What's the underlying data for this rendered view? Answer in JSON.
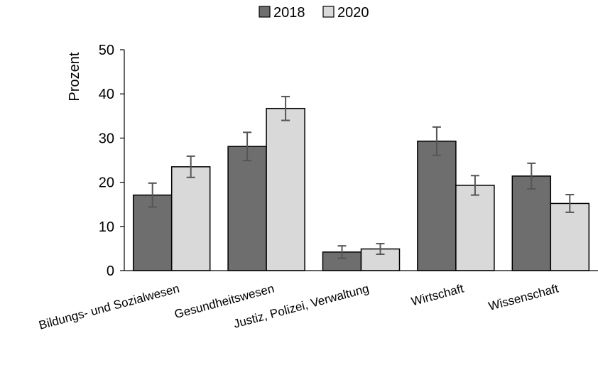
{
  "chart_data": {
    "type": "bar",
    "title": "",
    "xlabel": "",
    "ylabel": "Prozent",
    "ylim": [
      0,
      50
    ],
    "yticks": [
      0,
      10,
      20,
      30,
      40,
      50
    ],
    "categories": [
      "Bildungs- und Sozialwesen",
      "Gesundheitswesen",
      "Justiz, Polizei, Verwaltung",
      "Wirtschaft",
      "Wissenschaft"
    ],
    "series": [
      {
        "name": "2018",
        "color": "#6e6e6e",
        "values": [
          17.1,
          28.1,
          4.2,
          29.3,
          21.4
        ],
        "errors": [
          2.7,
          3.2,
          1.4,
          3.2,
          2.9
        ]
      },
      {
        "name": "2020",
        "color": "#d9d9d9",
        "values": [
          23.5,
          36.7,
          4.9,
          19.3,
          15.2
        ],
        "errors": [
          2.4,
          2.7,
          1.2,
          2.2,
          2.0
        ]
      }
    ],
    "legend_position": "top-center",
    "grid": false
  }
}
